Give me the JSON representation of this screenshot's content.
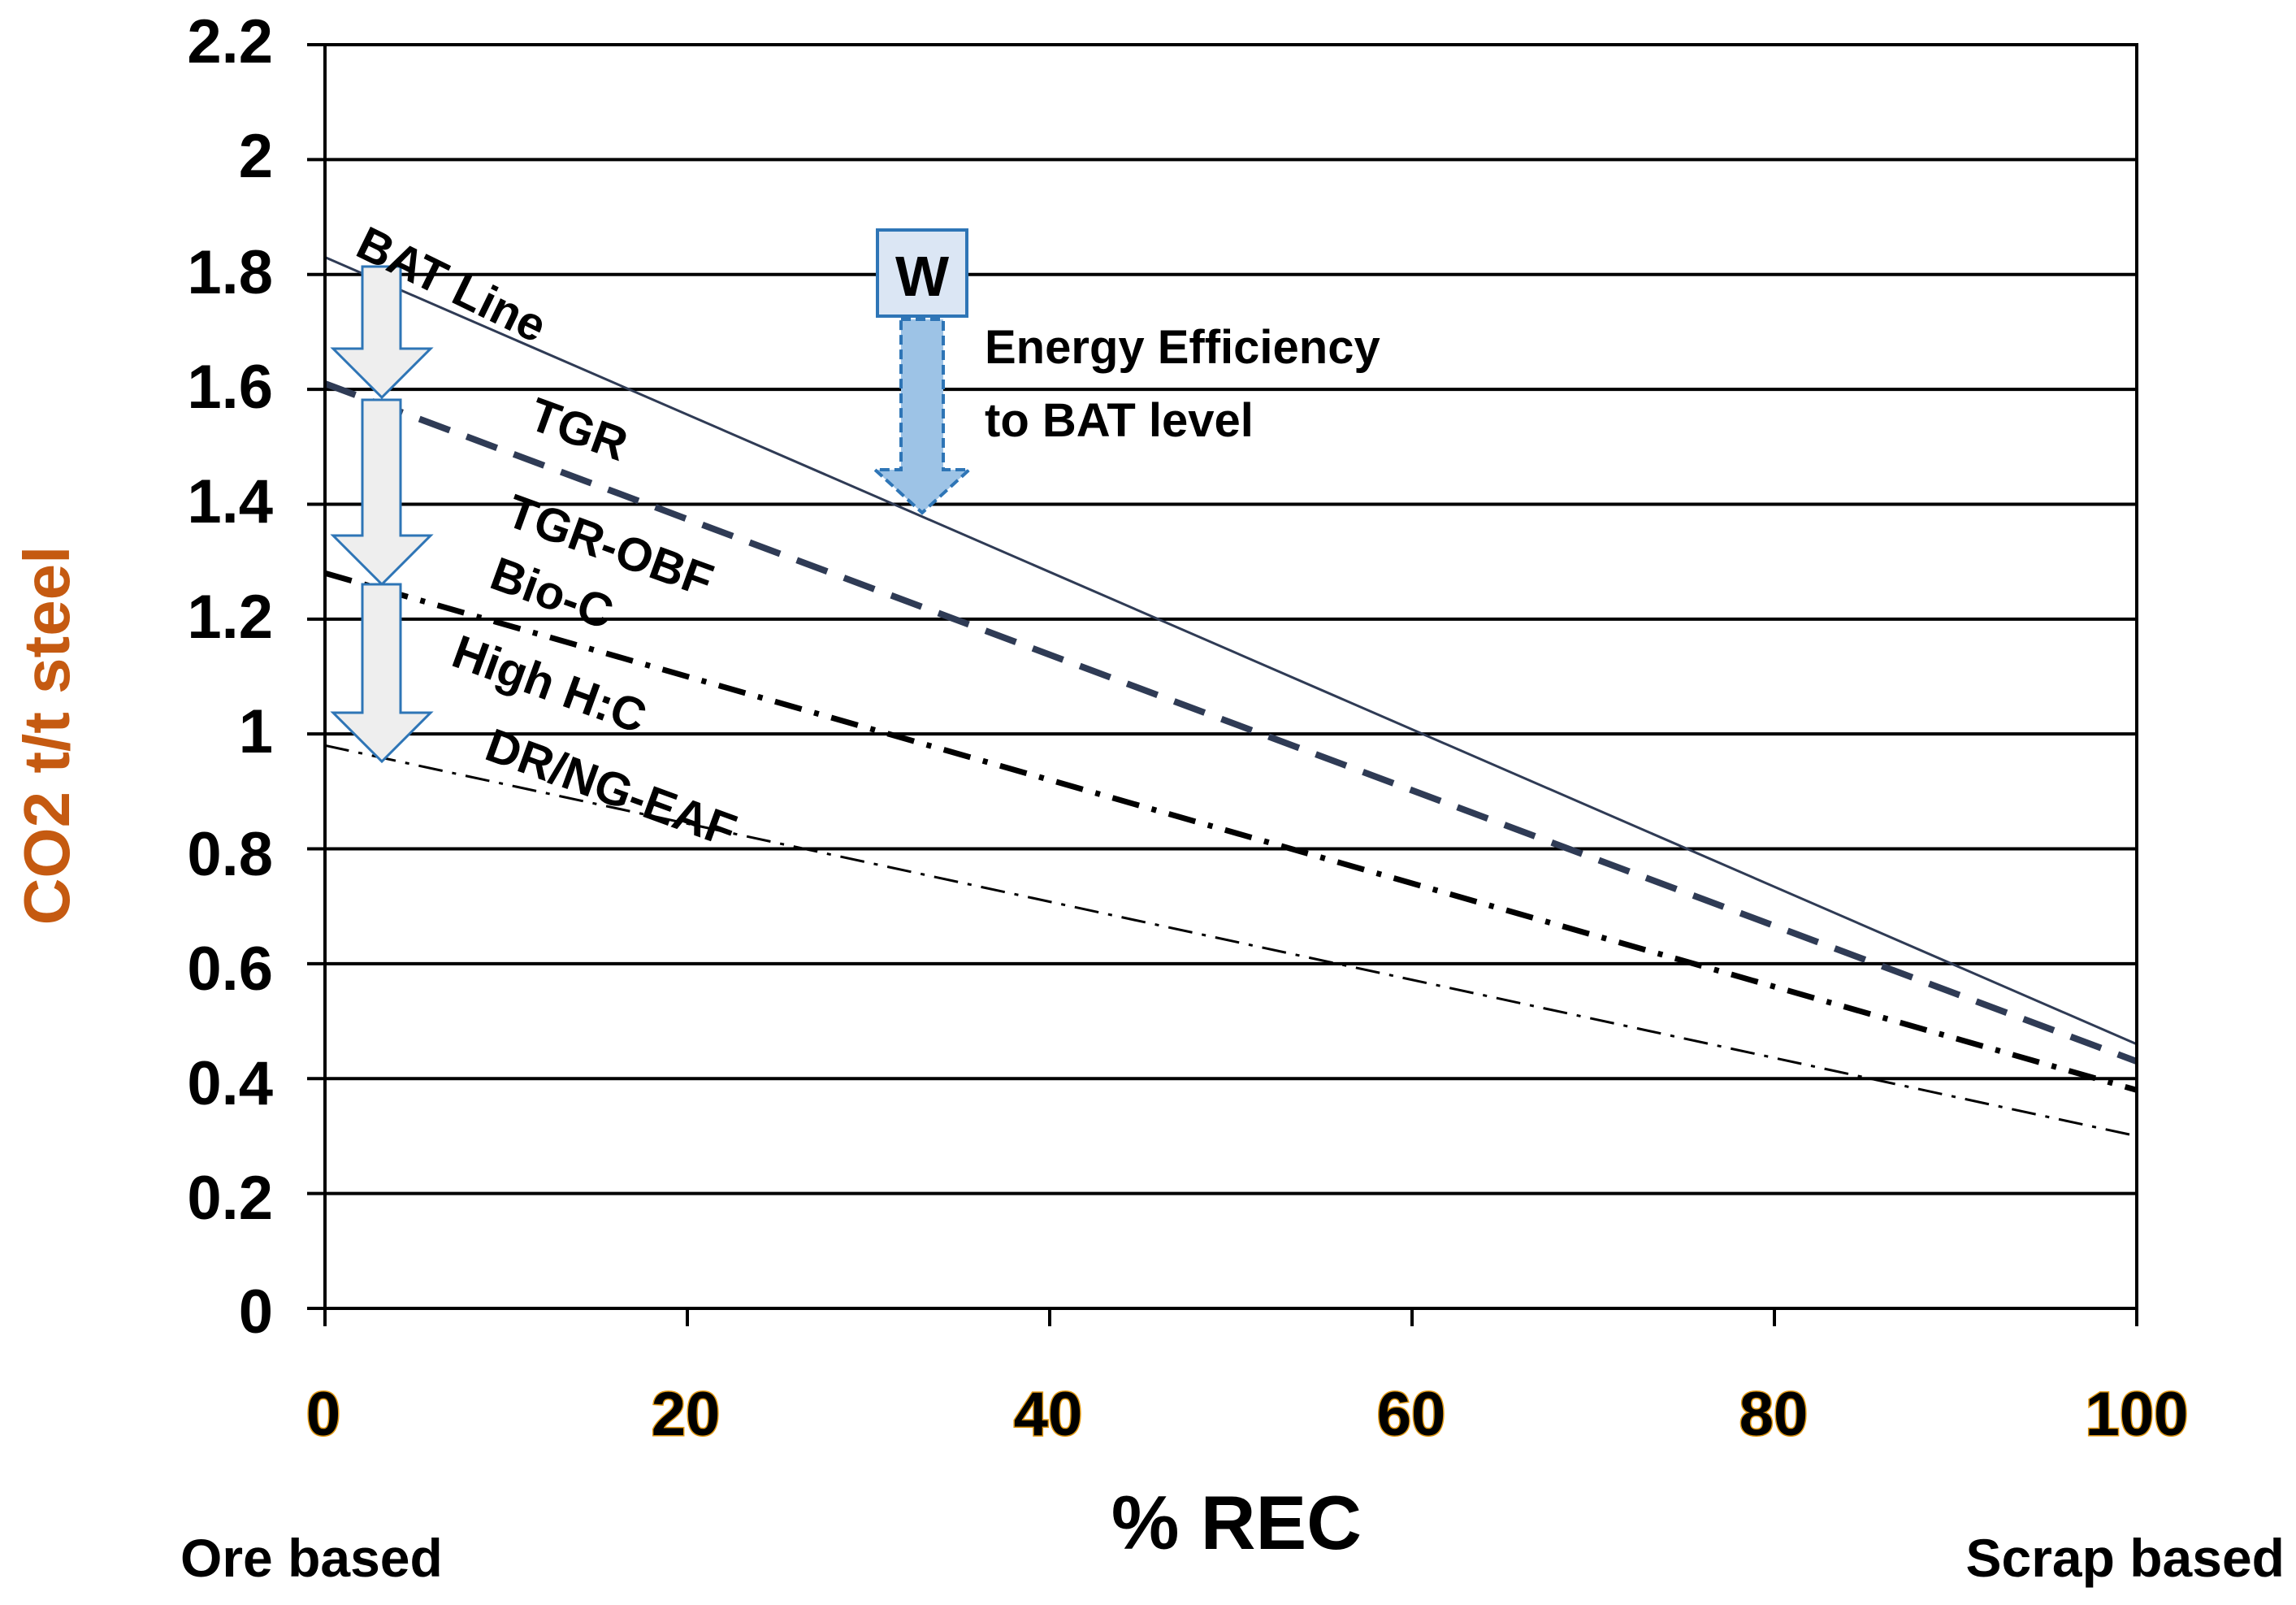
{
  "chart_data": {
    "type": "line",
    "title": "",
    "xlabel": "% REC",
    "ylabel": "CO2 t/t steel",
    "xlim": [
      0,
      100
    ],
    "ylim": [
      0,
      2.2
    ],
    "x_ticks": [
      "0",
      "20",
      "40",
      "60",
      "80",
      "100"
    ],
    "y_ticks": [
      "0",
      "0.2",
      "0.4",
      "0.6",
      "0.8",
      "1",
      "1.2",
      "1.4",
      "1.6",
      "1.8",
      "2",
      "2.2"
    ],
    "grid": true,
    "x_endpoints": [
      0,
      100
    ],
    "series": [
      {
        "name": "BAT Line",
        "x": [
          0,
          100
        ],
        "y": [
          1.83,
          0.46
        ],
        "style": "solid"
      },
      {
        "name": "TGR",
        "x": [
          0,
          100
        ],
        "y": [
          1.61,
          0.43
        ],
        "style": "dashed"
      },
      {
        "name": "TGR-OBF",
        "x": [
          0,
          100
        ],
        "y": [
          1.28,
          0.38
        ],
        "style": "dashdot"
      },
      {
        "name": "Bio-C",
        "x": [
          0,
          100
        ],
        "y": [
          1.28,
          0.38
        ],
        "style": "dashdot"
      },
      {
        "name": "High H:C",
        "x": [
          0,
          100
        ],
        "y": [
          1.28,
          0.38
        ],
        "style": "dashdot"
      },
      {
        "name": "DR/NG-EAF",
        "x": [
          0,
          100
        ],
        "y": [
          0.98,
          0.3
        ],
        "style": "dashdot-thin"
      }
    ],
    "annotations": {
      "w_box": "W",
      "energy_line1": "Energy Efficiency",
      "energy_line2": "to BAT level"
    },
    "x_left_label": "Ore based",
    "x_right_label": "Scrap based"
  },
  "colors": {
    "y_title": "#c55a11",
    "x_tick_outline": "#e39a14",
    "bat_line": "#2f3b55",
    "tgr_line": "#2f3b55",
    "w_box_fill": "#dbe6f4",
    "w_box_stroke": "#2e75b6",
    "arrow_fill": "#9dc3e6",
    "grey_arrow_fill": "#eeeeee",
    "grey_arrow_stroke": "#2e75b6"
  }
}
